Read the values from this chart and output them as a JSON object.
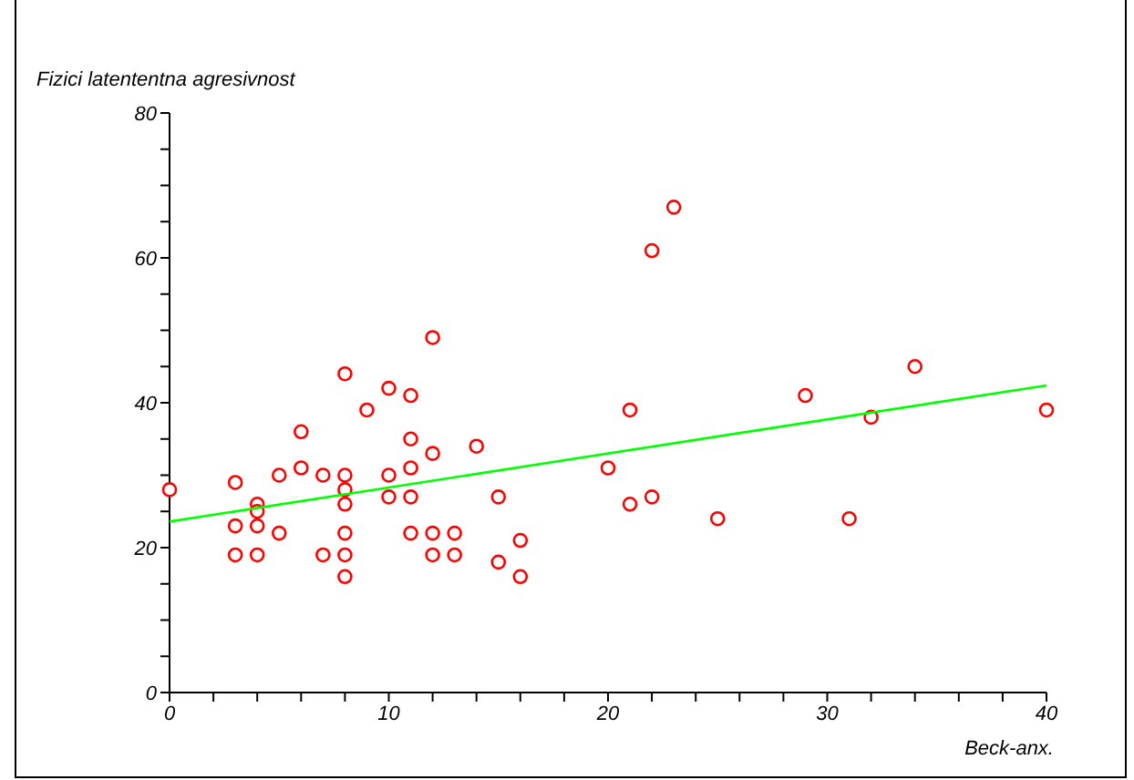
{
  "chart_data": {
    "type": "scatter",
    "xlabel": "Beck-anx.",
    "ylabel": "Fizici latententna agresivnost",
    "xlim": [
      0,
      40
    ],
    "xticks": [
      0,
      {
        "value": 2,
        "label": null
      },
      {
        "value": 4,
        "label": null
      },
      {
        "value": 6,
        "label": null
      },
      {
        "value": 8,
        "label": null
      },
      10,
      {
        "value": 12,
        "label": null
      },
      {
        "value": 14,
        "label": null
      },
      {
        "value": 16,
        "label": null
      },
      {
        "value": 18,
        "label": null
      },
      20,
      {
        "value": 22,
        "label": null
      },
      {
        "value": 24,
        "label": null
      },
      {
        "value": 26,
        "label": null
      },
      {
        "value": 28,
        "label": null
      },
      30,
      {
        "value": 32,
        "label": null
      },
      {
        "value": 34,
        "label": null
      },
      {
        "value": 36,
        "label": null
      },
      {
        "value": 38,
        "label": null
      },
      40
    ],
    "ylim": [
      0,
      80
    ],
    "yticks": [
      0,
      {
        "value": 5,
        "label": null
      },
      {
        "value": 10,
        "label": null
      },
      {
        "value": 15,
        "label": null
      },
      20,
      {
        "value": 25,
        "label": null
      },
      {
        "value": 30,
        "label": null
      },
      {
        "value": 35,
        "label": null
      },
      40,
      {
        "value": 45,
        "label": null
      },
      {
        "value": 50,
        "label": null
      },
      {
        "value": 55,
        "label": null
      },
      60,
      {
        "value": 65,
        "label": null
      },
      {
        "value": 70,
        "label": null
      },
      {
        "value": 75,
        "label": null
      },
      80
    ],
    "marker": "circle",
    "series": [
      {
        "color": "#ff0000",
        "x": [
          0,
          3,
          3,
          3,
          4,
          4,
          4,
          4,
          5,
          5,
          6,
          6,
          7,
          7,
          8,
          8,
          8,
          8,
          8,
          8,
          8,
          9,
          10,
          10,
          10,
          11,
          11,
          11,
          11,
          11,
          12,
          12,
          12,
          12,
          13,
          13,
          14,
          15,
          15,
          16,
          16,
          20,
          21,
          21,
          22,
          22,
          23,
          25,
          29,
          31,
          32,
          34,
          40
        ],
        "values": [
          28,
          29,
          23,
          19,
          26,
          25,
          23,
          19,
          30,
          22,
          36,
          31,
          30,
          19,
          44,
          30,
          28,
          26,
          22,
          19,
          16,
          39,
          42,
          30,
          27,
          41,
          35,
          31,
          27,
          22,
          49,
          33,
          22,
          19,
          22,
          19,
          34,
          27,
          18,
          21,
          16,
          31,
          39,
          26,
          61,
          27,
          67,
          24,
          41,
          24,
          38,
          45,
          39
        ]
      },
      {
        "type": "line",
        "color": "#00ff00",
        "marker": "none",
        "x": [
          0,
          40
        ],
        "values": [
          23.6,
          42.4
        ]
      }
    ]
  }
}
